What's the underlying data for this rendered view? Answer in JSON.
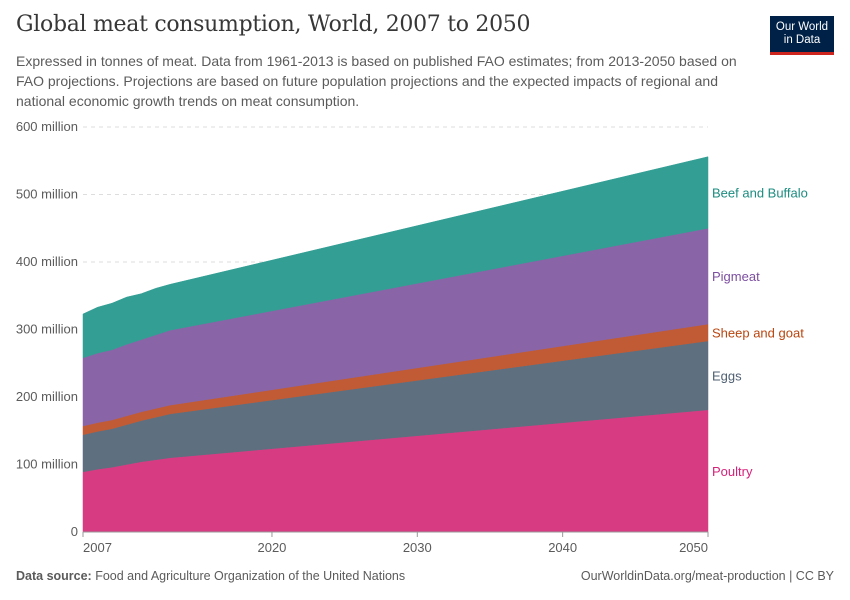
{
  "header": {
    "title": "Global meat consumption, World, 2007 to 2050",
    "subtitle": "Expressed in tonnes of meat. Data from 1961-2013 is based on published FAO estimates; from 2013-2050 based on FAO projections. Projections are based on future population projections and the expected impacts of regional and national economic growth trends on meat consumption.",
    "logo": "Our World in Data"
  },
  "footer": {
    "source_label": "Data source:",
    "source": "Food and Agriculture Organization of the United Nations",
    "right": "OurWorldinData.org/meat-production | CC BY"
  },
  "chart_data": {
    "type": "area",
    "stacked": true,
    "title": "Global meat consumption, World, 2007 to 2050",
    "x": [
      2007,
      2008,
      2009,
      2010,
      2011,
      2012,
      2013,
      2050
    ],
    "xlim": [
      2007,
      2050
    ],
    "ylim": [
      0,
      600000000
    ],
    "x_ticks": [
      2007,
      2020,
      2030,
      2040,
      2050
    ],
    "y_ticks": [
      {
        "value": 0,
        "label": "0"
      },
      {
        "value": 100000000,
        "label": "100 million"
      },
      {
        "value": 200000000,
        "label": "200 million"
      },
      {
        "value": 300000000,
        "label": "300 million"
      },
      {
        "value": 400000000,
        "label": "400 million"
      },
      {
        "value": 500000000,
        "label": "500 million"
      },
      {
        "value": 600000000,
        "label": "600 million"
      }
    ],
    "grid": "horizontal dashed",
    "legend": "right (inline labels)",
    "series": [
      {
        "name": "Poultry",
        "color": "#d73c82",
        "label_color": "#d6217a",
        "values": [
          89000000,
          93000000,
          96000000,
          100000000,
          104000000,
          107000000,
          110000000,
          181000000
        ]
      },
      {
        "name": "Eggs",
        "color": "#5e6f80",
        "label_color": "#4f5f72",
        "values": [
          55000000,
          56000000,
          57000000,
          59000000,
          61000000,
          63000000,
          65000000,
          102000000
        ]
      },
      {
        "name": "Sheep and goat",
        "color": "#c05b35",
        "label_color": "#b9450f",
        "values": [
          13000000,
          13000000,
          13000000,
          13000000,
          13000000,
          13000000,
          13000000,
          25000000
        ]
      },
      {
        "name": "Pigmeat",
        "color": "#8964a6",
        "label_color": "#7c4ea0",
        "values": [
          101000000,
          103000000,
          104000000,
          106000000,
          107000000,
          109000000,
          111000000,
          142000000
        ]
      },
      {
        "name": "Beef and Buffalo",
        "color": "#339e94",
        "label_color": "#1c8c80",
        "values": [
          65000000,
          68000000,
          69000000,
          70000000,
          68000000,
          69000000,
          68000000,
          106000000
        ]
      }
    ]
  }
}
